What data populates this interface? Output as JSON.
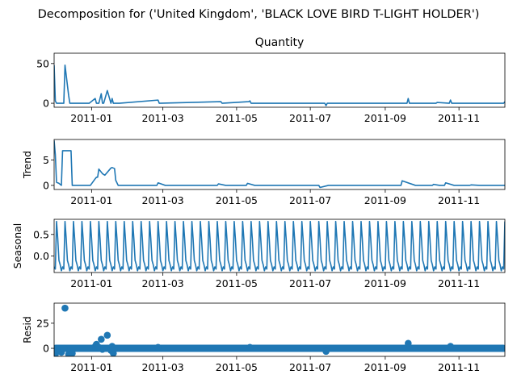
{
  "figure": {
    "suptitle": "Decomposition for ('United Kingdom', 'BLACK LOVE BIRD T-LIGHT HOLDER')"
  },
  "colors": {
    "series": "#1f77b4",
    "axis": "#000000"
  },
  "chart_data": [
    {
      "type": "line",
      "panel": "observed",
      "title": "Quantity",
      "ylabel": "",
      "xlim": [
        "2010-12-01",
        "2011-12-09"
      ],
      "ylim": [
        -5,
        63
      ],
      "yticks": [
        0,
        50
      ],
      "xticks": [
        "2011-01",
        "2011-03",
        "2011-05",
        "2011-07",
        "2011-09",
        "2011-11"
      ],
      "x": [
        "2010-12-01",
        "2010-12-02",
        "2010-12-03",
        "2010-12-08",
        "2010-12-09",
        "2010-12-10",
        "2010-12-13",
        "2010-12-14",
        "2010-12-15",
        "2010-12-16",
        "2010-12-28",
        "2010-12-30",
        "2011-01-04",
        "2011-01-05",
        "2011-01-06",
        "2011-01-07",
        "2011-01-09",
        "2011-01-10",
        "2011-01-11",
        "2011-01-14",
        "2011-01-17",
        "2011-01-18",
        "2011-01-19",
        "2011-01-20",
        "2011-01-21",
        "2011-01-24",
        "2011-02-25",
        "2011-02-26",
        "2011-04-18",
        "2011-04-19",
        "2011-05-11",
        "2011-05-12",
        "2011-05-13",
        "2011-07-13",
        "2011-07-14",
        "2011-07-15",
        "2011-09-19",
        "2011-09-20",
        "2011-09-21",
        "2011-10-13",
        "2011-10-14",
        "2011-10-24",
        "2011-10-25",
        "2011-10-26",
        "2011-11-14",
        "2011-11-15",
        "2011-12-08",
        "2011-12-09"
      ],
      "y": [
        48,
        3,
        0,
        0,
        0,
        48,
        10,
        0,
        0,
        0,
        0,
        0,
        6,
        0,
        0,
        0,
        12,
        0,
        0,
        16,
        0,
        6,
        0,
        0,
        0,
        0,
        4,
        0,
        2,
        0,
        2,
        3,
        0,
        0,
        -3,
        0,
        0,
        6,
        0,
        0,
        1,
        0,
        4,
        0,
        0,
        0,
        0,
        2
      ]
    },
    {
      "type": "line",
      "panel": "trend",
      "title": "",
      "ylabel": "Trend",
      "xlim": [
        "2010-12-01",
        "2011-12-09"
      ],
      "ylim": [
        -0.8,
        9.0
      ],
      "yticks": [
        0,
        5
      ],
      "xticks": [
        "2011-01",
        "2011-03",
        "2011-05",
        "2011-07",
        "2011-09",
        "2011-11"
      ],
      "x": [
        "2010-12-01",
        "2010-12-02",
        "2010-12-03",
        "2010-12-05",
        "2010-12-07",
        "2010-12-08",
        "2010-12-15",
        "2010-12-16",
        "2010-12-31",
        "2011-01-04",
        "2011-01-05",
        "2011-01-06",
        "2011-01-07",
        "2011-01-10",
        "2011-01-12",
        "2011-01-17",
        "2011-01-18",
        "2011-01-20",
        "2011-01-21",
        "2011-01-23",
        "2011-01-25",
        "2011-02-24",
        "2011-02-25",
        "2011-03-03",
        "2011-04-15",
        "2011-04-16",
        "2011-04-22",
        "2011-05-09",
        "2011-05-10",
        "2011-05-16",
        "2011-07-08",
        "2011-07-09",
        "2011-07-16",
        "2011-09-14",
        "2011-09-15",
        "2011-09-26",
        "2011-10-10",
        "2011-10-11",
        "2011-10-16",
        "2011-10-20",
        "2011-10-21",
        "2011-10-28",
        "2011-11-10",
        "2011-11-11",
        "2011-11-18",
        "2011-12-09"
      ],
      "y": [
        8.8,
        6.0,
        0.6,
        0.4,
        0.0,
        6.8,
        6.8,
        0.0,
        0.0,
        1.3,
        1.6,
        1.6,
        3.2,
        2.3,
        2.0,
        3.4,
        3.5,
        3.3,
        1.0,
        0.0,
        0.0,
        0.0,
        0.5,
        0.0,
        0.0,
        0.3,
        0.0,
        0.0,
        0.4,
        0.0,
        0.0,
        -0.4,
        0.0,
        0.0,
        0.9,
        0.0,
        0.0,
        0.2,
        0.0,
        0.0,
        0.5,
        0.0,
        0.0,
        0.1,
        0.0,
        0.0
      ]
    },
    {
      "type": "line",
      "panel": "seasonal",
      "title": "",
      "ylabel": "Seasonal",
      "xlim": [
        "2010-12-01",
        "2011-12-09"
      ],
      "ylim": [
        -0.38,
        0.85
      ],
      "yticks": [
        0.0,
        0.5
      ],
      "xticks": [
        "2011-01",
        "2011-03",
        "2011-05",
        "2011-07",
        "2011-09",
        "2011-11"
      ],
      "period_days": 7,
      "pattern": [
        -0.25,
        -0.3,
        0.8,
        0.4,
        -0.1,
        -0.2,
        -0.34
      ]
    },
    {
      "type": "scatter",
      "panel": "resid",
      "title": "",
      "ylabel": "Resid",
      "xlim": [
        "2010-12-01",
        "2011-12-09"
      ],
      "ylim": [
        -8,
        45
      ],
      "yticks": [
        0,
        25
      ],
      "xticks": [
        "2011-01",
        "2011-03",
        "2011-05",
        "2011-07",
        "2011-09",
        "2011-11"
      ],
      "baseline": 0,
      "x": [
        "2010-12-01",
        "2010-12-02",
        "2010-12-03",
        "2010-12-06",
        "2010-12-07",
        "2010-12-09",
        "2010-12-10",
        "2010-12-13",
        "2010-12-14",
        "2010-12-15",
        "2010-12-16",
        "2011-01-04",
        "2011-01-05",
        "2011-01-06",
        "2011-01-07",
        "2011-01-09",
        "2011-01-10",
        "2011-01-11",
        "2011-01-14",
        "2011-01-17",
        "2011-01-18",
        "2011-01-19",
        "2011-01-20",
        "2011-02-25",
        "2011-05-12",
        "2011-07-14",
        "2011-09-20",
        "2011-10-25"
      ],
      "y": [
        -5,
        -6,
        -2,
        -1,
        -4,
        0,
        40,
        -6,
        -5,
        -6,
        -5,
        2,
        4,
        1,
        1,
        9,
        -1,
        0,
        13,
        -2,
        2,
        -5,
        0,
        1,
        1,
        -3,
        5,
        2
      ]
    }
  ]
}
